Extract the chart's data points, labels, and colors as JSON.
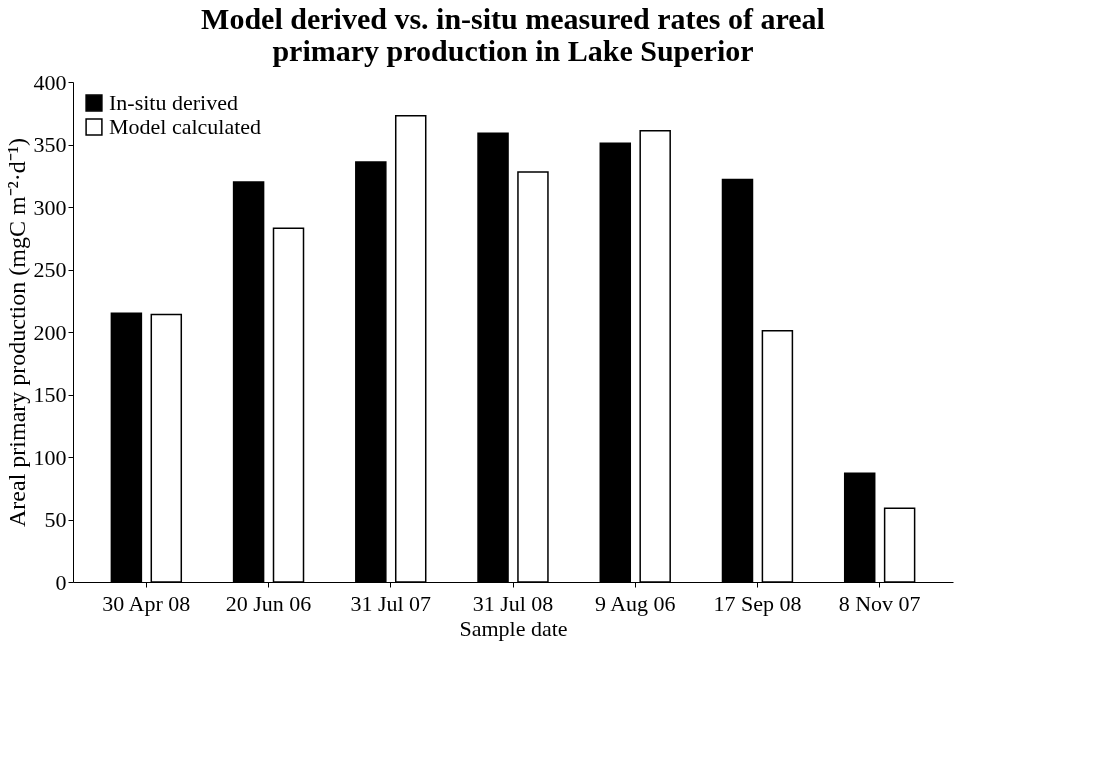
{
  "chart_data": {
    "type": "bar",
    "title": "Model derived vs. in-situ measured rates of areal primary production in Lake Superior",
    "xlabel": "Sample date",
    "ylabel": "Areal primary production (mgC m⁻²·d⁻¹)",
    "categories": [
      "30 Apr 08",
      "20 Jun 06",
      "31 Jul 07",
      "31 Jul 08",
      "9 Aug 06",
      "17 Sep 08",
      "8 Nov 07"
    ],
    "series": [
      {
        "name": "In-situ derived",
        "color": "#000000",
        "values": [
          215,
          320,
          336,
          359,
          351,
          322,
          87
        ]
      },
      {
        "name": "Model calculated",
        "color": "#ffffff",
        "values": [
          214,
          283,
          373,
          328,
          361,
          201,
          59
        ]
      }
    ],
    "ylim": [
      0,
      400
    ],
    "yticks": [
      0,
      50,
      100,
      150,
      200,
      250,
      300,
      350,
      400
    ],
    "grid": false,
    "legend": "top left"
  }
}
